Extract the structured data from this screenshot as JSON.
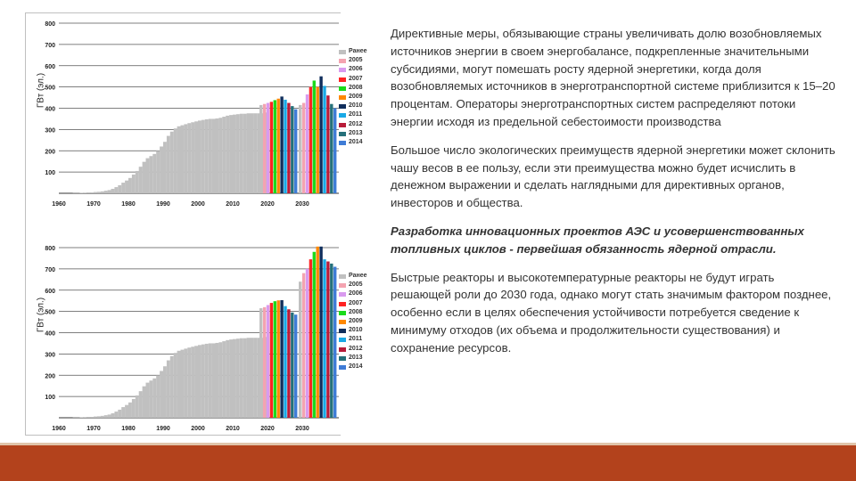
{
  "colors": {
    "history": "#c0c0c0",
    "footer": "#b3421c",
    "scenario": [
      "#c0c0c0",
      "#f4a3b0",
      "#d99aef",
      "#ff2222",
      "#1adb1a",
      "#ff8800",
      "#102e5c",
      "#19a9e6",
      "#b81c39",
      "#25707a",
      "#3f7cd6"
    ]
  },
  "chart_data": [
    {
      "type": "bar",
      "ylabel": "ГВт (эл.)",
      "ylim": [
        0,
        800
      ],
      "yticks": [
        "800",
        "700",
        "600",
        "500",
        "400",
        "300",
        "200",
        "100"
      ],
      "xticks": [
        "1960",
        "1970",
        "1980",
        "1990",
        "2000",
        "2010",
        "2020",
        "2030"
      ],
      "legend": [
        "Ранее",
        "2005",
        "2006",
        "2007",
        "2008",
        "2009",
        "2010",
        "2011",
        "2012",
        "2013",
        "2014"
      ],
      "history": [
        0,
        0,
        0,
        0,
        1,
        1,
        2,
        3,
        4,
        4,
        6,
        7,
        9,
        12,
        15,
        21,
        29,
        38,
        50,
        60,
        72,
        88,
        105,
        125,
        148,
        165,
        175,
        185,
        200,
        220,
        242,
        270,
        290,
        305,
        315,
        320,
        325,
        330,
        334,
        338,
        342,
        345,
        348,
        350,
        350,
        352,
        355,
        360,
        365,
        368,
        370,
        372,
        374,
        374,
        376,
        376,
        376,
        376,
        376,
        380
      ],
      "scenario_2020": [
        415,
        420,
        425,
        430,
        438,
        445,
        455,
        440,
        425,
        410,
        395
      ],
      "scenario_2030": [
        415,
        425,
        465,
        500,
        530,
        500,
        550,
        505,
        460,
        420,
        400
      ]
    },
    {
      "type": "bar",
      "ylabel": "ГВт (эл.)",
      "ylim": [
        0,
        800
      ],
      "yticks": [
        "800",
        "700",
        "600",
        "500",
        "400",
        "300",
        "200",
        "100"
      ],
      "xticks": [
        "1960",
        "1970",
        "1980",
        "1990",
        "2000",
        "2010",
        "2020",
        "2030"
      ],
      "legend": [
        "Ранее",
        "2005",
        "2006",
        "2007",
        "2008",
        "2009",
        "2010",
        "2011",
        "2012",
        "2013",
        "2014"
      ],
      "history": [
        0,
        0,
        0,
        0,
        1,
        1,
        2,
        3,
        4,
        4,
        6,
        7,
        9,
        12,
        15,
        21,
        29,
        38,
        50,
        60,
        72,
        88,
        105,
        125,
        148,
        165,
        175,
        185,
        200,
        220,
        242,
        270,
        290,
        305,
        315,
        320,
        325,
        330,
        334,
        338,
        342,
        345,
        348,
        350,
        350,
        352,
        355,
        360,
        365,
        368,
        370,
        372,
        374,
        374,
        376,
        376,
        376,
        376,
        376,
        380
      ],
      "scenario_2020": [
        515,
        520,
        530,
        540,
        548,
        552,
        553,
        525,
        510,
        495,
        485
      ],
      "scenario_2030": [
        640,
        680,
        700,
        745,
        780,
        805,
        805,
        745,
        735,
        725,
        710
      ]
    }
  ],
  "text": {
    "p1": "Директивные меры, обязывающие страны увеличивать долю возобновляемых источников энергии в своем энергобалансе, подкрепленные значительными субсидиями, могут помешать росту ядерной энергетики, когда доля возобновляемых источников в энерготранспортной системе приблизится к 15–20 процентам. Операторы энерготранспортных систем распределяют потоки энергии исходя из предельной себестоимости производства",
    "p2": "Большое число экологических преимуществ ядерной энергетики может склонить чашу весов в ее пользу, если эти преимущества можно будет исчислить в денежном выражении и сделать наглядными для директивных органов, инвесторов и общества.",
    "p3": "Разработка инновационных проектов АЭС и усовершенствованных топливных циклов - первейшая обязанность ядерной отрасли.",
    "p4": "Быстрые реакторы и высокотемпературные реакторы не будут играть решающей роли до 2030 года, однако могут стать значимым фактором позднее, особенно если в целях обеспечения устойчивости потребуется сведение к минимуму отходов (их объема и продолжительности существования) и сохранение ресурсов."
  }
}
